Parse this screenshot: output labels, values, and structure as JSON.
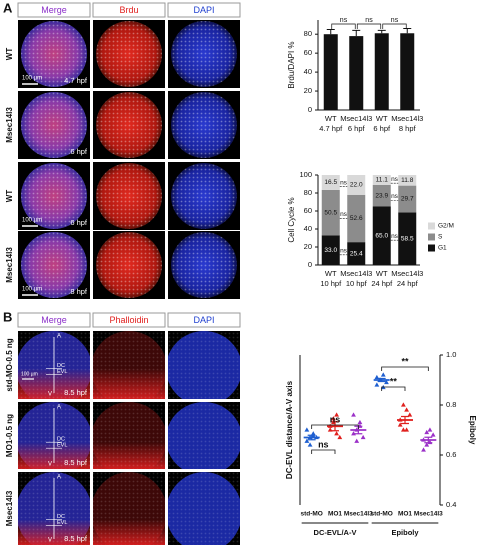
{
  "panel_a": {
    "label": "A",
    "columns": [
      "Merge",
      "Brdu",
      "DAPI"
    ],
    "rows": [
      {
        "label": "WT",
        "time": "4.7 hpf"
      },
      {
        "label": "Msec14l3",
        "time": "6 hpf"
      },
      {
        "label": "WT",
        "time": "6 hpf"
      },
      {
        "label": "Msec14l3",
        "time": "8 hpf"
      }
    ],
    "scale_bar": "100 µm"
  },
  "panel_b": {
    "label": "B",
    "columns": [
      "Merge",
      "Phalloidin",
      "DAPI"
    ],
    "rows": [
      {
        "label": "std-MO-0.5 ng",
        "time": "8.5 hpf"
      },
      {
        "label": "MO1-0.5 ng",
        "time": "8.5 hpf"
      },
      {
        "label": "Msec14l3",
        "time": "8.5 hpf"
      }
    ],
    "markers": {
      "animal": "A",
      "vegetal": "V",
      "dc": "DC",
      "evl": "EVL"
    },
    "scale_bar": "100 µm"
  },
  "chart_data": [
    {
      "type": "bar",
      "ylabel": "Brdu/DAPI %",
      "categories": [
        "WT",
        "Msec14l3",
        "WT",
        "Msec14l3"
      ],
      "category_sublabels": [
        "4.7 hpf",
        "6 hpf",
        "6 hpf",
        "8 hpf"
      ],
      "values": [
        80,
        78,
        81,
        81
      ],
      "errors": [
        5,
        6,
        3,
        5
      ],
      "color": "#111111",
      "ylim": [
        0,
        95
      ],
      "yticks": [
        0,
        20,
        40,
        60,
        80
      ],
      "annotations": [
        "ns",
        "ns",
        "ns"
      ]
    },
    {
      "type": "stacked_bar",
      "ylabel": "Cell Cycle %",
      "categories": [
        "WT",
        "Msec14l3",
        "WT",
        "Msec14l3"
      ],
      "category_sublabels": [
        "10 hpf",
        "10 hpf",
        "24 hpf",
        "24 hpf"
      ],
      "series": [
        {
          "name": "G1",
          "color": "#111111",
          "values": [
            33,
            25.4,
            65,
            58.5
          ],
          "value_labels": [
            "33.0",
            "25.4",
            "65.0",
            "58.5"
          ]
        },
        {
          "name": "S",
          "color": "#8c8c8c",
          "values": [
            50.5,
            52.6,
            23.9,
            29.7
          ]
        },
        {
          "name": "G2/M",
          "color": "#d9d9d9",
          "values": [
            16.5,
            22,
            11.1,
            11.8
          ],
          "value_labels": [
            "16.5",
            "22.0",
            "11.1",
            "11.8"
          ]
        }
      ],
      "ylim": [
        0,
        100
      ],
      "yticks": [
        0,
        20,
        40,
        60,
        80,
        100
      ],
      "annotations": [
        "ns",
        "ns",
        "ns",
        "ns",
        "ns",
        "ns"
      ]
    },
    {
      "type": "dotplot",
      "ylabel": "DC-EVL distance/A-V axis",
      "y2label": "Epiboly",
      "categories": [
        "std-MO",
        "MO1",
        "Msec14l3",
        "std-MO",
        "MO1",
        "Msec14l3"
      ],
      "group_labels": [
        "DC-EVL/A-V",
        "Epiboly"
      ],
      "axes": [
        "y",
        "y",
        "y",
        "y2",
        "y2",
        "y2"
      ],
      "colors": [
        "#1f5fd0",
        "#e0201e",
        "#9b30c8",
        "#1f5fd0",
        "#e0201e",
        "#9b30c8"
      ],
      "points": [
        [
          0.085,
          0.09,
          0.095,
          0.09,
          0.1,
          0.08,
          0.092
        ],
        [
          0.1,
          0.11,
          0.12,
          0.09,
          0.105,
          0.115,
          0.095
        ],
        [
          0.095,
          0.1,
          0.11,
          0.09,
          0.12,
          0.085,
          0.105
        ],
        [
          0.88,
          0.9,
          0.92,
          0.89,
          0.91,
          0.9,
          0.87
        ],
        [
          0.74,
          0.7,
          0.78,
          0.76,
          0.72,
          0.8,
          0.7
        ],
        [
          0.66,
          0.64,
          0.7,
          0.68,
          0.62,
          0.69,
          0.65
        ]
      ],
      "means": [
        0.09,
        0.105,
        0.1,
        0.9,
        0.74,
        0.66
      ],
      "sems": [
        0.003,
        0.006,
        0.005,
        0.006,
        0.014,
        0.011
      ],
      "ylim": [
        0,
        0.2
      ],
      "y2lim": [
        0.4,
        1.0
      ],
      "y2ticks": [
        0.4,
        0.6,
        0.8,
        {
          "value": 1.0,
          "label": "1.0"
        }
      ],
      "annotations": [
        "ns",
        "ns",
        "**",
        "**"
      ]
    }
  ]
}
